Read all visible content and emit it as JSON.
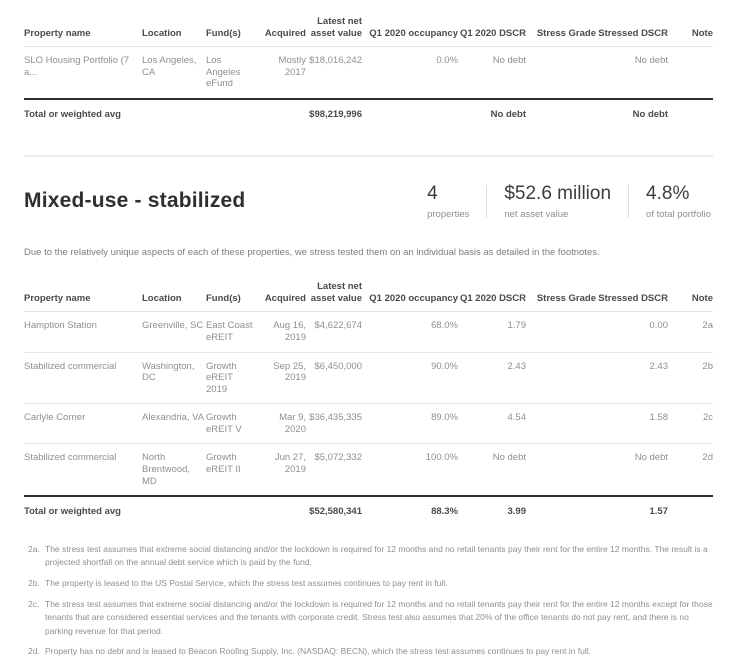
{
  "columns": [
    {
      "key": "property",
      "label": "Property name"
    },
    {
      "key": "location",
      "label": "Location"
    },
    {
      "key": "funds",
      "label": "Fund(s)"
    },
    {
      "key": "acquired",
      "label": "Acquired"
    },
    {
      "key": "nav",
      "label": "Latest net asset value"
    },
    {
      "key": "occupancy",
      "label": "Q1 2020 occupancy"
    },
    {
      "key": "q1_dscr",
      "label": "Q1 2020 DSCR"
    },
    {
      "key": "stress_grade",
      "label": "Stress Grade"
    },
    {
      "key": "stressed_dscr",
      "label": "Stressed DSCR"
    },
    {
      "key": "note",
      "label": "Note"
    }
  ],
  "top_table": {
    "rows": [
      {
        "property": "SLO Housing Portfolio (7 a...",
        "location": "Los Angeles, CA",
        "funds": "Los Angeles eFund",
        "acquired": "Mostly 2017",
        "nav": "$18,016,242",
        "occupancy": "0.0%",
        "q1_dscr": "No debt",
        "stress_grade": "",
        "stressed_dscr": "No debt",
        "note": ""
      }
    ],
    "total": {
      "property": "Total or weighted avg",
      "location": "",
      "funds": "",
      "acquired": "",
      "nav": "$98,219,996",
      "occupancy": "",
      "q1_dscr": "No debt",
      "stress_grade": "",
      "stressed_dscr": "No debt",
      "note": ""
    }
  },
  "section": {
    "title": "Mixed-use - stabilized",
    "stats": [
      {
        "value": "4",
        "label": "properties"
      },
      {
        "value": "$52.6 million",
        "label": "net asset value"
      },
      {
        "value": "4.8%",
        "label": "of total portfolio"
      }
    ],
    "description": "Due to the relatively unique aspects of each of these properties, we stress tested them on an individual basis as detailed in the footnotes."
  },
  "mixed_use_table": {
    "rows": [
      {
        "property": "Hamption Station",
        "location": "Greenville, SC",
        "funds": "East Coast eREIT",
        "acquired": "Aug 16, 2019",
        "nav": "$4,622,674",
        "occupancy": "68.0%",
        "q1_dscr": "1.79",
        "stress_grade": "",
        "stressed_dscr": "0.00",
        "note": "2a"
      },
      {
        "property": "Stabilized commercial",
        "location": "Washington, DC",
        "funds": "Growth eREIT 2019",
        "acquired": "Sep 25, 2019",
        "nav": "$6,450,000",
        "occupancy": "90.0%",
        "q1_dscr": "2.43",
        "stress_grade": "",
        "stressed_dscr": "2.43",
        "note": "2b"
      },
      {
        "property": "Carlyle Corner",
        "location": "Alexandria, VA",
        "funds": "Growth eREIT V",
        "acquired": "Mar 9, 2020",
        "nav": "$36,435,335",
        "occupancy": "89.0%",
        "q1_dscr": "4.54",
        "stress_grade": "",
        "stressed_dscr": "1.58",
        "note": "2c"
      },
      {
        "property": "Stabilized commercial",
        "location": "North Brentwood, MD",
        "funds": "Growth eREIT II",
        "acquired": "Jun 27, 2019",
        "nav": "$5,072,332",
        "occupancy": "100.0%",
        "q1_dscr": "No debt",
        "stress_grade": "",
        "stressed_dscr": "No debt",
        "note": "2d"
      }
    ],
    "total": {
      "property": "Total or weighted avg",
      "location": "",
      "funds": "",
      "acquired": "",
      "nav": "$52,580,341",
      "occupancy": "88.3%",
      "q1_dscr": "3.99",
      "stress_grade": "",
      "stressed_dscr": "1.57",
      "note": ""
    }
  },
  "footnotes": [
    {
      "id": "2a.",
      "text": "The stress test assumes that extreme social distancing and/or the lockdown is required for 12 months and no retail tenants pay their rent for the entire 12 months. The result is a projected shortfall on the annual debt service which is paid by the fund."
    },
    {
      "id": "2b.",
      "text": "The property is leased to the US Postal Service, which the stress test assumes continues to pay rent in full."
    },
    {
      "id": "2c.",
      "text": "The stress test assumes that extreme social distancing and/or the lockdown is required for 12 months and no retail tenants pay their rent for the entire 12 months except for those tenants that are considered essential services and the tenants with corporate credit. Stress test also assumes that 20% of the office tenants do not pay rent, and there is no parking revenue for that period."
    },
    {
      "id": "2d.",
      "text": "Property has no debt and is leased to Beacon Roofing Supply, Inc. (NASDAQ: BECN), which the stress test assumes continues to pay rent in full."
    }
  ]
}
